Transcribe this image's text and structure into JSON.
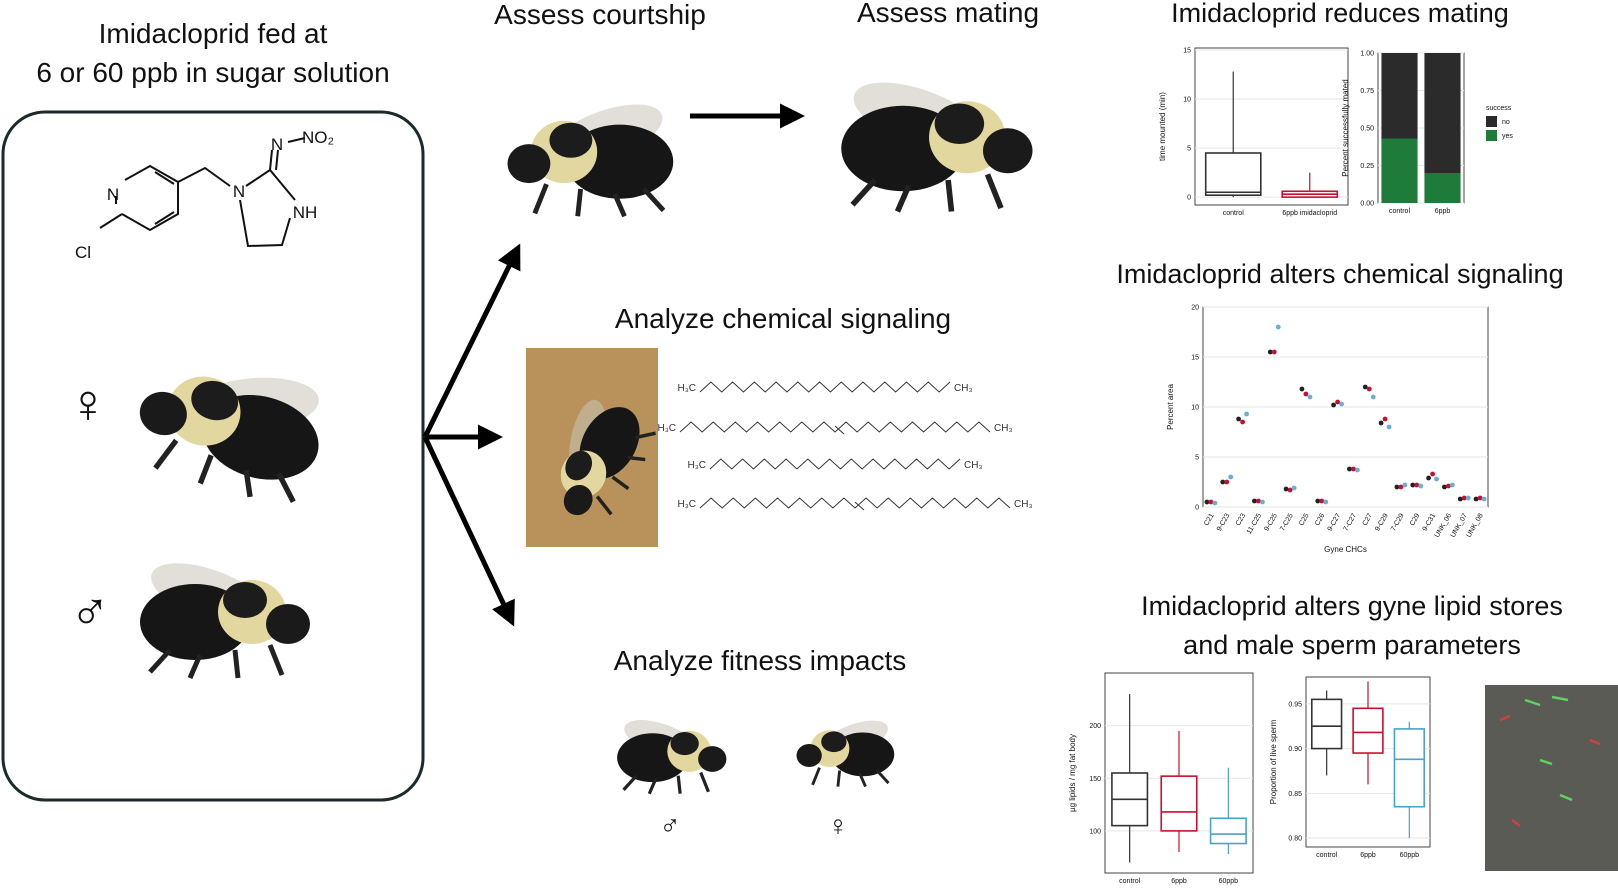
{
  "left": {
    "title": [
      "Imidacloprid fed at",
      "6 or 60 ppb in sugar solution"
    ],
    "atoms": [
      "N",
      "NO₂",
      "N",
      "NH",
      "Cl",
      "N"
    ],
    "female_symbol": "♀",
    "male_symbol": "♂"
  },
  "steps": {
    "courtship": "Assess courtship",
    "mating": "Assess mating",
    "chemical": "Analyze chemical signaling",
    "fitness": "Analyze fitness impacts",
    "fitness_symbols": [
      "♂",
      "♀"
    ]
  },
  "hydrocarbons": [
    [
      "H₃C",
      "CH₃"
    ],
    [
      "H₃C",
      "CH₃"
    ],
    [
      "H₃C",
      "CH₃"
    ],
    [
      "H₃C",
      "CH₃"
    ]
  ],
  "panel_titles": {
    "mating": "Imidacloprid reduces mating",
    "chemical": "Imidacloprid alters chemical signaling",
    "lipid": [
      "Imidacloprid alters gyne lipid stores",
      "and male sperm parameters"
    ]
  },
  "plots": [
    {
      "y_label": "time mounted (min)",
      "ylim": [
        -0.8,
        15.2
      ],
      "yticks": [
        0,
        5,
        10,
        15
      ],
      "categories": [
        "control",
        "6ppb imidacloprid"
      ],
      "colors": [
        "#333333",
        "#c8102e"
      ],
      "boxes": [
        {
          "min": 0,
          "q1": 0.2,
          "median": 0.5,
          "q3": 4.5,
          "max": 12.8
        },
        {
          "min": 0,
          "q1": 0,
          "median": 0.3,
          "q3": 0.6,
          "max": 2.5
        }
      ]
    },
    {
      "y_label": "Percent successfully mated",
      "ylim": [
        0,
        1
      ],
      "yticks": [
        {
          "value": 0,
          "label": "0.00"
        },
        {
          "value": 0.25,
          "label": "0.25"
        },
        {
          "value": 0.5,
          "label": "0.50"
        },
        {
          "value": 0.75,
          "label": "0.75"
        },
        {
          "value": 1,
          "label": "1.00"
        }
      ],
      "categories": [
        "control",
        "6ppb"
      ],
      "legend_title": "success",
      "series": [
        {
          "name": "no",
          "color": "#2b2b2b",
          "values": [
            0.57,
            0.8
          ]
        },
        {
          "name": "yes",
          "color": "#1e7b3a",
          "values": [
            0.43,
            0.2
          ]
        }
      ]
    },
    {
      "y_label": "Percent area",
      "x_label": "Gyne CHCs",
      "ylim": [
        0,
        20
      ],
      "yticks": [
        0,
        5,
        10,
        15,
        20
      ],
      "categories": [
        "C21",
        "9-C23",
        "C23",
        "11-C25",
        "9-C25",
        "7-C25",
        "C25",
        "C26",
        "9-C27",
        "7-C27",
        "C27",
        "9-C29",
        "7-C29",
        "C29",
        "9-C31",
        "UNK_06",
        "UNK_07",
        "UNK_08"
      ],
      "series": [
        {
          "color": "#222222",
          "values": [
            0.5,
            2.5,
            8.8,
            0.6,
            15.5,
            1.8,
            11.8,
            0.6,
            10.2,
            3.8,
            12,
            8.4,
            2,
            2.2,
            2.9,
            2,
            0.8,
            0.8
          ]
        },
        {
          "color": "#c8102e",
          "values": [
            0.5,
            2.5,
            8.5,
            0.6,
            15.5,
            1.7,
            11.3,
            0.6,
            10.5,
            3.8,
            11.8,
            8.8,
            2,
            2.2,
            3.3,
            2.1,
            0.9,
            0.9
          ]
        },
        {
          "color": "#6aaed6",
          "values": [
            0.4,
            3,
            9.3,
            0.5,
            18,
            1.9,
            11,
            0.5,
            10.3,
            3.7,
            11,
            8,
            2.2,
            2.1,
            2.8,
            2.2,
            0.9,
            0.8
          ]
        }
      ]
    },
    {
      "y_label": "µg lipids / mg fat body",
      "ylim": [
        60,
        250
      ],
      "yticks": [
        100,
        150,
        200
      ],
      "categories": [
        "control",
        "6ppb",
        "60ppb"
      ],
      "colors": [
        "#333333",
        "#c8102e",
        "#4aa3c8"
      ],
      "boxes": [
        {
          "min": 70,
          "q1": 105,
          "median": 130,
          "q3": 155,
          "max": 230
        },
        {
          "min": 80,
          "q1": 100,
          "median": 118,
          "q3": 152,
          "max": 195
        },
        {
          "min": 78,
          "q1": 88,
          "median": 97,
          "q3": 112,
          "max": 160
        }
      ]
    },
    {
      "y_label": "Proportion of live sperm",
      "ylim": [
        0.79,
        0.98
      ],
      "yticks": [
        {
          "value": 0.8,
          "label": "0.80"
        },
        {
          "value": 0.85,
          "label": "0.85"
        },
        {
          "value": 0.9,
          "label": "0.90"
        },
        {
          "value": 0.95,
          "label": "0.95"
        }
      ],
      "categories": [
        "control",
        "6ppb",
        "60ppb"
      ],
      "colors": [
        "#333333",
        "#c8102e",
        "#4aa3c8"
      ],
      "boxes": [
        {
          "min": 0.87,
          "q1": 0.9,
          "median": 0.925,
          "q3": 0.955,
          "max": 0.965
        },
        {
          "min": 0.86,
          "q1": 0.895,
          "median": 0.918,
          "q3": 0.945,
          "max": 0.975
        },
        {
          "min": 0.8,
          "q1": 0.835,
          "median": 0.888,
          "q3": 0.922,
          "max": 0.93
        }
      ]
    }
  ]
}
